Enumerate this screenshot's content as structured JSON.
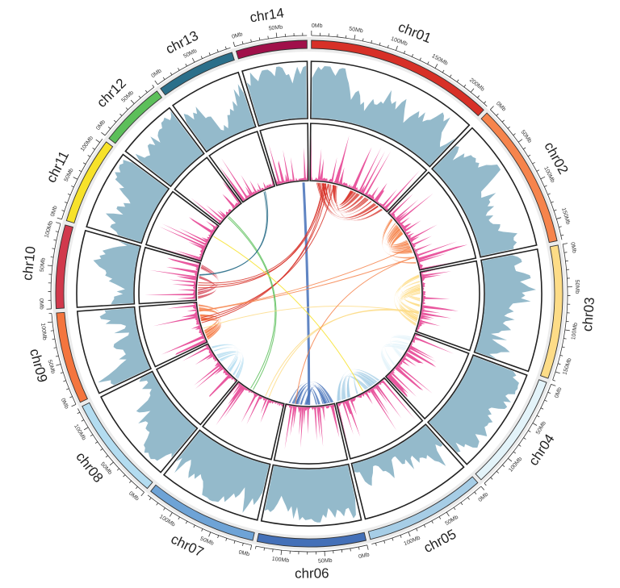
{
  "tick_unit": "Mb",
  "tick_label_interval_mb": 50,
  "tick_minor_interval_mb": 10,
  "chromosomes": [
    {
      "name": "chr01",
      "length_mb": 225,
      "color": "#d73027"
    },
    {
      "name": "chr02",
      "length_mb": 175,
      "color": "#f6844c"
    },
    {
      "name": "chr03",
      "length_mb": 160,
      "color": "#fddc87"
    },
    {
      "name": "chr04",
      "length_mb": 140,
      "color": "#e3f3f9"
    },
    {
      "name": "chr05",
      "length_mb": 145,
      "color": "#a6cde6"
    },
    {
      "name": "chr06",
      "length_mb": 130,
      "color": "#4470b8"
    },
    {
      "name": "chr07",
      "length_mb": 135,
      "color": "#6ea3d6"
    },
    {
      "name": "chr08",
      "length_mb": 125,
      "color": "#b3dcf0"
    },
    {
      "name": "chr09",
      "length_mb": 110,
      "color": "#f4753e"
    },
    {
      "name": "chr10",
      "length_mb": 100,
      "color": "#d1394c"
    },
    {
      "name": "chr11",
      "length_mb": 105,
      "color": "#f7e22a"
    },
    {
      "name": "chr12",
      "length_mb": 80,
      "color": "#5cbf5a"
    },
    {
      "name": "chr13",
      "length_mb": 95,
      "color": "#2b6f8a"
    },
    {
      "name": "chr14",
      "length_mb": 85,
      "color": "#a0104a"
    }
  ],
  "tracks": {
    "density_color": "#94bacb",
    "spike_color": "#e9589f"
  },
  "links": [
    {
      "from": "chr01",
      "to": "chr01",
      "from_mb": [
        15,
        70
      ],
      "to_mb": [
        110,
        215
      ],
      "count": 14
    },
    {
      "from": "chr02",
      "to": "chr02",
      "from_mb": [
        10,
        70
      ],
      "to_mb": [
        85,
        165
      ],
      "count": 12
    },
    {
      "from": "chr03",
      "to": "chr03",
      "from_mb": [
        5,
        60
      ],
      "to_mb": [
        70,
        150
      ],
      "count": 14
    },
    {
      "from": "chr04",
      "to": "chr04",
      "from_mb": [
        5,
        50
      ],
      "to_mb": [
        70,
        130
      ],
      "count": 6
    },
    {
      "from": "chr05",
      "to": "chr05",
      "from_mb": [
        10,
        60
      ],
      "to_mb": [
        80,
        140
      ],
      "count": 8
    },
    {
      "from": "chr06",
      "to": "chr06",
      "from_mb": [
        5,
        50
      ],
      "to_mb": [
        70,
        125
      ],
      "count": 9
    },
    {
      "from": "chr08",
      "to": "chr08",
      "from_mb": [
        5,
        50
      ],
      "to_mb": [
        60,
        120
      ],
      "count": 8
    },
    {
      "from": "chr09",
      "to": "chr09",
      "from_mb": [
        5,
        45
      ],
      "to_mb": [
        55,
        105
      ],
      "count": 8
    },
    {
      "from": "chr10",
      "to": "chr10",
      "from_mb": [
        5,
        40
      ],
      "to_mb": [
        50,
        95
      ],
      "count": 4
    },
    {
      "from": "chr14",
      "to": "chr06",
      "from_mb": [
        70,
        80
      ],
      "to_mb": [
        60,
        70
      ],
      "count": 1
    },
    {
      "from": "chr01",
      "to": "chr10",
      "from_mb": [
        30,
        60
      ],
      "to_mb": [
        20,
        60
      ],
      "count": 3
    },
    {
      "from": "chr01",
      "to": "chr09",
      "from_mb": [
        40,
        80
      ],
      "to_mb": [
        30,
        80
      ],
      "count": 3
    },
    {
      "from": "chr02",
      "to": "chr09",
      "from_mb": [
        100,
        150
      ],
      "to_mb": [
        60,
        90
      ],
      "count": 2
    },
    {
      "from": "chr03",
      "to": "chr07",
      "from_mb": [
        90,
        120
      ],
      "to_mb": [
        40,
        80
      ],
      "count": 2
    },
    {
      "from": "chr12",
      "to": "chr07",
      "from_mb": [
        20,
        50
      ],
      "to_mb": [
        90,
        120
      ],
      "count": 2
    },
    {
      "from": "chr13",
      "to": "chr10",
      "from_mb": [
        60,
        80
      ],
      "to_mb": [
        60,
        80
      ],
      "count": 2
    },
    {
      "from": "chr11",
      "to": "chr05",
      "from_mb": [
        50,
        80
      ],
      "to_mb": [
        40,
        70
      ],
      "count": 1
    },
    {
      "from": "chr03",
      "to": "chr09",
      "from_mb": [
        100,
        130
      ],
      "to_mb": [
        20,
        40
      ],
      "count": 1
    },
    {
      "from": "chr02",
      "to": "chr06",
      "from_mb": [
        120,
        140
      ],
      "to_mb": [
        90,
        110
      ],
      "count": 1
    }
  ]
}
